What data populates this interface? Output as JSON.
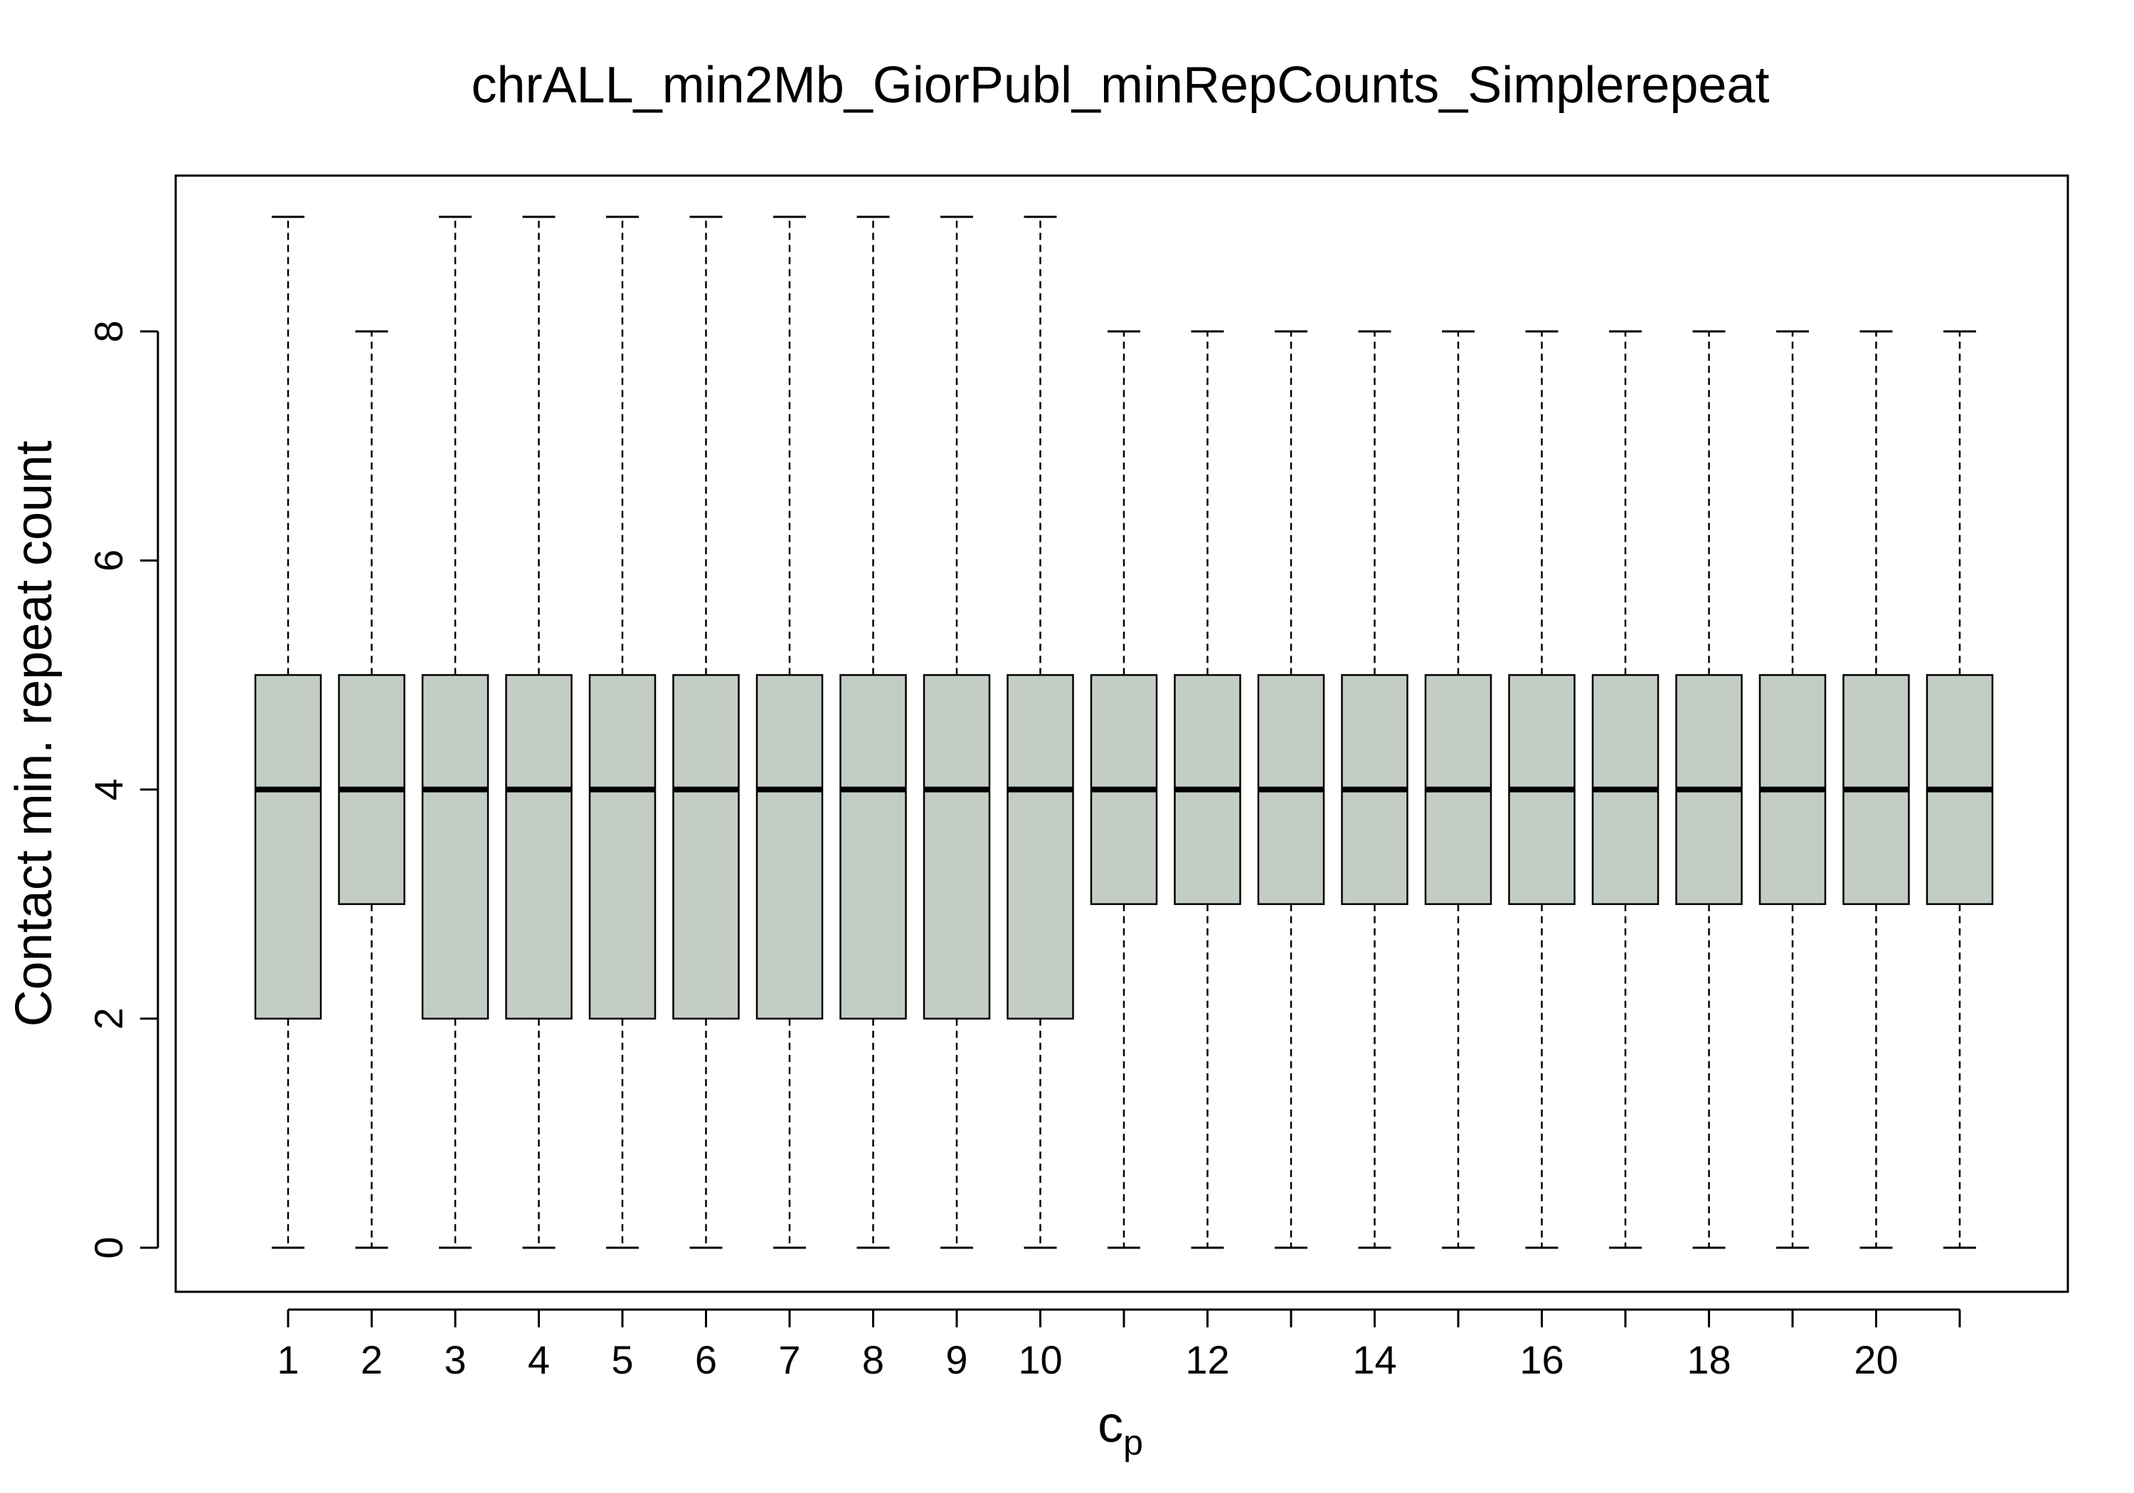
{
  "chart_data": {
    "type": "box",
    "title": "chrALL_min2Mb_GiorPubl_minRepCounts_Simplerepeat",
    "xlabel": "c",
    "xlabel_subscript": "p",
    "ylabel": "Contact min. repeat count",
    "categories": [
      1,
      2,
      3,
      4,
      5,
      6,
      7,
      8,
      9,
      10,
      11,
      12,
      13,
      14,
      15,
      16,
      17,
      18,
      19,
      20,
      21
    ],
    "x_tick_labels": [
      "1",
      "2",
      "3",
      "4",
      "5",
      "6",
      "7",
      "8",
      "9",
      "10",
      "",
      "12",
      "",
      "14",
      "",
      "16",
      "",
      "18",
      "",
      "20",
      ""
    ],
    "y_ticks": [
      0,
      2,
      4,
      6,
      8
    ],
    "ylim": [
      -0.36,
      9.36
    ],
    "grid": false,
    "legend": "none",
    "box_fill": "#c4cdc4",
    "boxes": [
      {
        "x": 1,
        "whisker_low": 0,
        "q1": 2,
        "median": 4,
        "q3": 5,
        "whisker_high": 9
      },
      {
        "x": 2,
        "whisker_low": 0,
        "q1": 3,
        "median": 4,
        "q3": 5,
        "whisker_high": 8
      },
      {
        "x": 3,
        "whisker_low": 0,
        "q1": 2,
        "median": 4,
        "q3": 5,
        "whisker_high": 9
      },
      {
        "x": 4,
        "whisker_low": 0,
        "q1": 2,
        "median": 4,
        "q3": 5,
        "whisker_high": 9
      },
      {
        "x": 5,
        "whisker_low": 0,
        "q1": 2,
        "median": 4,
        "q3": 5,
        "whisker_high": 9
      },
      {
        "x": 6,
        "whisker_low": 0,
        "q1": 2,
        "median": 4,
        "q3": 5,
        "whisker_high": 9
      },
      {
        "x": 7,
        "whisker_low": 0,
        "q1": 2,
        "median": 4,
        "q3": 5,
        "whisker_high": 9
      },
      {
        "x": 8,
        "whisker_low": 0,
        "q1": 2,
        "median": 4,
        "q3": 5,
        "whisker_high": 9
      },
      {
        "x": 9,
        "whisker_low": 0,
        "q1": 2,
        "median": 4,
        "q3": 5,
        "whisker_high": 9
      },
      {
        "x": 10,
        "whisker_low": 0,
        "q1": 2,
        "median": 4,
        "q3": 5,
        "whisker_high": 9
      },
      {
        "x": 11,
        "whisker_low": 0,
        "q1": 3,
        "median": 4,
        "q3": 5,
        "whisker_high": 8
      },
      {
        "x": 12,
        "whisker_low": 0,
        "q1": 3,
        "median": 4,
        "q3": 5,
        "whisker_high": 8
      },
      {
        "x": 13,
        "whisker_low": 0,
        "q1": 3,
        "median": 4,
        "q3": 5,
        "whisker_high": 8
      },
      {
        "x": 14,
        "whisker_low": 0,
        "q1": 3,
        "median": 4,
        "q3": 5,
        "whisker_high": 8
      },
      {
        "x": 15,
        "whisker_low": 0,
        "q1": 3,
        "median": 4,
        "q3": 5,
        "whisker_high": 8
      },
      {
        "x": 16,
        "whisker_low": 0,
        "q1": 3,
        "median": 4,
        "q3": 5,
        "whisker_high": 8
      },
      {
        "x": 17,
        "whisker_low": 0,
        "q1": 3,
        "median": 4,
        "q3": 5,
        "whisker_high": 8
      },
      {
        "x": 18,
        "whisker_low": 0,
        "q1": 3,
        "median": 4,
        "q3": 5,
        "whisker_high": 8
      },
      {
        "x": 19,
        "whisker_low": 0,
        "q1": 3,
        "median": 4,
        "q3": 5,
        "whisker_high": 8
      },
      {
        "x": 20,
        "whisker_low": 0,
        "q1": 3,
        "median": 4,
        "q3": 5,
        "whisker_high": 8
      },
      {
        "x": 21,
        "whisker_low": 0,
        "q1": 3,
        "median": 4,
        "q3": 5,
        "whisker_high": 8
      }
    ]
  }
}
